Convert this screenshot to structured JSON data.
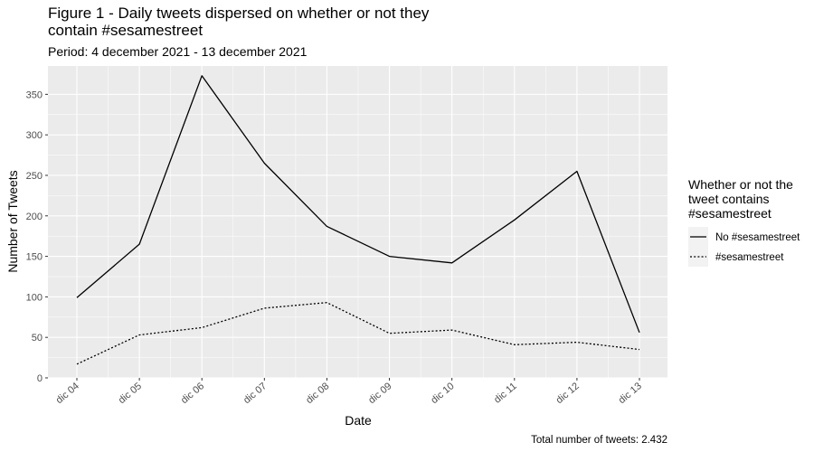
{
  "chart_data": {
    "type": "line",
    "title_lines": [
      "Figure 1 - Daily tweets dispersed on whether or not they",
      "contain #sesamestreet"
    ],
    "subtitle": "Period: 4 december 2021 - 13 december 2021",
    "xlabel": "Date",
    "ylabel": "Number of Tweets",
    "categories": [
      "dic 04",
      "dic 05",
      "dic 06",
      "dic 07",
      "dic 08",
      "dic 09",
      "dic 10",
      "dic 11",
      "dic 12",
      "dic 13"
    ],
    "ylim": [
      0,
      385
    ],
    "yticks": [
      0,
      50,
      100,
      150,
      200,
      250,
      300,
      350
    ],
    "grid": true,
    "legend_position": "right",
    "legend_title_lines": [
      "Whether or not the",
      "tweet contains",
      "#sesamestreet"
    ],
    "series": [
      {
        "name": "No #sesamestreet",
        "linestyle": "solid",
        "values": [
          99,
          165,
          373,
          265,
          187,
          150,
          142,
          195,
          255,
          56
        ]
      },
      {
        "name": "#sesamestreet",
        "linestyle": "dotted",
        "values": [
          17,
          53,
          62,
          86,
          93,
          55,
          59,
          41,
          44,
          35
        ]
      }
    ],
    "caption": "Total number of tweets: 2.432",
    "colors": {
      "panel_background": "#ebebeb",
      "grid": "#ffffff",
      "line": "#000000",
      "tick_text": "#4d4d4d",
      "tick_mark": "#333333"
    }
  }
}
